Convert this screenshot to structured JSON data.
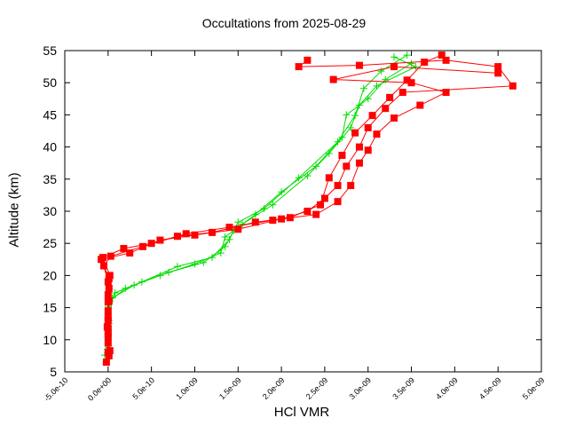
{
  "chart_data": {
    "type": "line",
    "title": "Occultations from 2025-08-29",
    "xlabel": "HCl VMR",
    "ylabel": "Altitude (km)",
    "xlim": [
      -5e-10,
      5e-09
    ],
    "ylim": [
      5,
      55
    ],
    "x_ticks": [
      "-5.0e-10",
      "0.0e+00",
      "5.0e-10",
      "1.0e-09",
      "1.5e-09",
      "2.0e-09",
      "2.5e-09",
      "3.0e-09",
      "3.5e-09",
      "4.0e-09",
      "4.5e-09",
      "5.0e-09"
    ],
    "x_tick_values": [
      -5e-10,
      0,
      5e-10,
      1e-09,
      1.5e-09,
      2e-09,
      2.5e-09,
      3e-09,
      3.5e-09,
      4e-09,
      4.5e-09,
      5e-09
    ],
    "y_ticks": [
      "5",
      "10",
      "15",
      "20",
      "25",
      "30",
      "35",
      "40",
      "45",
      "50",
      "55"
    ],
    "y_tick_values": [
      5,
      10,
      15,
      20,
      25,
      30,
      35,
      40,
      45,
      50,
      55
    ],
    "grid": false,
    "legend": "none",
    "series": [
      {
        "name": "green-profiles",
        "color": "#00dd00",
        "marker": "cross",
        "profiles": [
          [
            [
              -4e-11,
              7.6
            ],
            [
              0,
              11.8
            ],
            [
              0,
              15.2
            ],
            [
              8e-11,
              17.3
            ],
            [
              3.9e-10,
              19
            ],
            [
              8e-10,
              21.4
            ],
            [
              1.2e-09,
              22.8
            ],
            [
              1.4e-09,
              25.6
            ],
            [
              1.5e-09,
              28.3
            ],
            [
              1.8e-09,
              30.4
            ],
            [
              2.2e-09,
              35.2
            ],
            [
              2.65e-09,
              40.8
            ],
            [
              2.85e-09,
              44.9
            ],
            [
              2.95e-09,
              49.1
            ],
            [
              3.15e-09,
              51.8
            ],
            [
              3.45e-09,
              54.3
            ]
          ],
          [
            [
              0,
              9
            ],
            [
              1e-11,
              13
            ],
            [
              2e-11,
              16
            ],
            [
              2e-10,
              18
            ],
            [
              6e-10,
              20
            ],
            [
              1e-09,
              21.8
            ],
            [
              1.3e-09,
              23.5
            ],
            [
              1.35e-09,
              26
            ],
            [
              1.55e-09,
              28
            ],
            [
              1.9e-09,
              31
            ],
            [
              2.3e-09,
              35.5
            ],
            [
              2.55e-09,
              39
            ],
            [
              2.8e-09,
              43
            ],
            [
              2.9e-09,
              46.5
            ],
            [
              3.1e-09,
              49.5
            ],
            [
              3.55e-09,
              52.5
            ],
            [
              3.3e-09,
              54
            ]
          ],
          [
            [
              -1e-11,
              8.5
            ],
            [
              1e-11,
              12.5
            ],
            [
              5e-11,
              16.5
            ],
            [
              3e-10,
              18.5
            ],
            [
              7e-10,
              20.5
            ],
            [
              1.1e-09,
              22
            ],
            [
              1.35e-09,
              24.5
            ],
            [
              1.45e-09,
              27
            ],
            [
              1.7e-09,
              29.5
            ],
            [
              2e-09,
              33
            ],
            [
              2.4e-09,
              37
            ],
            [
              2.7e-09,
              41.5
            ],
            [
              2.75e-09,
              45
            ],
            [
              3e-09,
              47.5
            ],
            [
              3.2e-09,
              50.5
            ],
            [
              3.5e-09,
              53
            ]
          ]
        ]
      },
      {
        "name": "red-profiles",
        "color": "#ff0000",
        "marker": "square",
        "profiles": [
          [
            [
              -2e-11,
              6.5
            ],
            [
              2e-11,
              8.3
            ],
            [
              0,
              10.5
            ],
            [
              0,
              11.8
            ],
            [
              0,
              13.5
            ],
            [
              0,
              15.9
            ],
            [
              1e-11,
              18
            ],
            [
              2e-11,
              20
            ],
            [
              -6e-11,
              22.8
            ],
            [
              1.8e-10,
              24.2
            ],
            [
              5e-10,
              25
            ],
            [
              8e-10,
              26.1
            ],
            [
              1.2e-09,
              26.7
            ],
            [
              1.7e-09,
              28.3
            ],
            [
              2.1e-09,
              29
            ],
            [
              2.45e-09,
              31
            ],
            [
              2.55e-09,
              35.2
            ],
            [
              2.7e-09,
              38.7
            ],
            [
              2.85e-09,
              42.2
            ],
            [
              3.05e-09,
              44.9
            ],
            [
              3.25e-09,
              47.7
            ],
            [
              3.45e-09,
              50.4
            ],
            [
              3.65e-09,
              53.2
            ],
            [
              3.85e-09,
              54.3
            ]
          ],
          [
            [
              1e-11,
              7.5
            ],
            [
              0,
              9.5
            ],
            [
              -1e-11,
              12
            ],
            [
              0,
              14.5
            ],
            [
              0,
              17
            ],
            [
              1e-11,
              19.5
            ],
            [
              -8e-11,
              22.5
            ],
            [
              2.5e-10,
              23.5
            ],
            [
              6e-10,
              25.5
            ],
            [
              1e-09,
              26.3
            ],
            [
              1.5e-09,
              27.2
            ],
            [
              2e-09,
              28.8
            ],
            [
              2.3e-09,
              30
            ],
            [
              2.5e-09,
              32
            ],
            [
              2.65e-09,
              34
            ],
            [
              2.75e-09,
              37
            ],
            [
              2.9e-09,
              40
            ],
            [
              3e-09,
              43
            ],
            [
              3.2e-09,
              46
            ],
            [
              3.4e-09,
              48.5
            ],
            [
              4.67e-09,
              49.5
            ],
            [
              4.5e-09,
              52.5
            ],
            [
              3.9e-09,
              53.5
            ],
            [
              2.9e-09,
              52.7
            ],
            [
              2.2e-09,
              52.5
            ],
            [
              2.3e-09,
              53.5
            ]
          ],
          [
            [
              0,
              8
            ],
            [
              0,
              11
            ],
            [
              0,
              13
            ],
            [
              1e-11,
              16
            ],
            [
              0,
              19
            ],
            [
              -5e-11,
              21.5
            ],
            [
              3e-11,
              23
            ],
            [
              4e-10,
              24.5
            ],
            [
              9e-10,
              26.5
            ],
            [
              1.4e-09,
              27.5
            ],
            [
              1.9e-09,
              28.6
            ],
            [
              2.4e-09,
              29.5
            ],
            [
              2.65e-09,
              31.5
            ],
            [
              2.8e-09,
              34
            ],
            [
              2.9e-09,
              37.5
            ],
            [
              3e-09,
              39.5
            ],
            [
              3.1e-09,
              42
            ],
            [
              3.3e-09,
              44.5
            ],
            [
              3.6e-09,
              46.5
            ],
            [
              3.9e-09,
              48.5
            ],
            [
              3.5e-09,
              50
            ],
            [
              2.6e-09,
              50.5
            ],
            [
              3.3e-09,
              52.5
            ],
            [
              4.5e-09,
              51.5
            ]
          ]
        ]
      }
    ]
  }
}
